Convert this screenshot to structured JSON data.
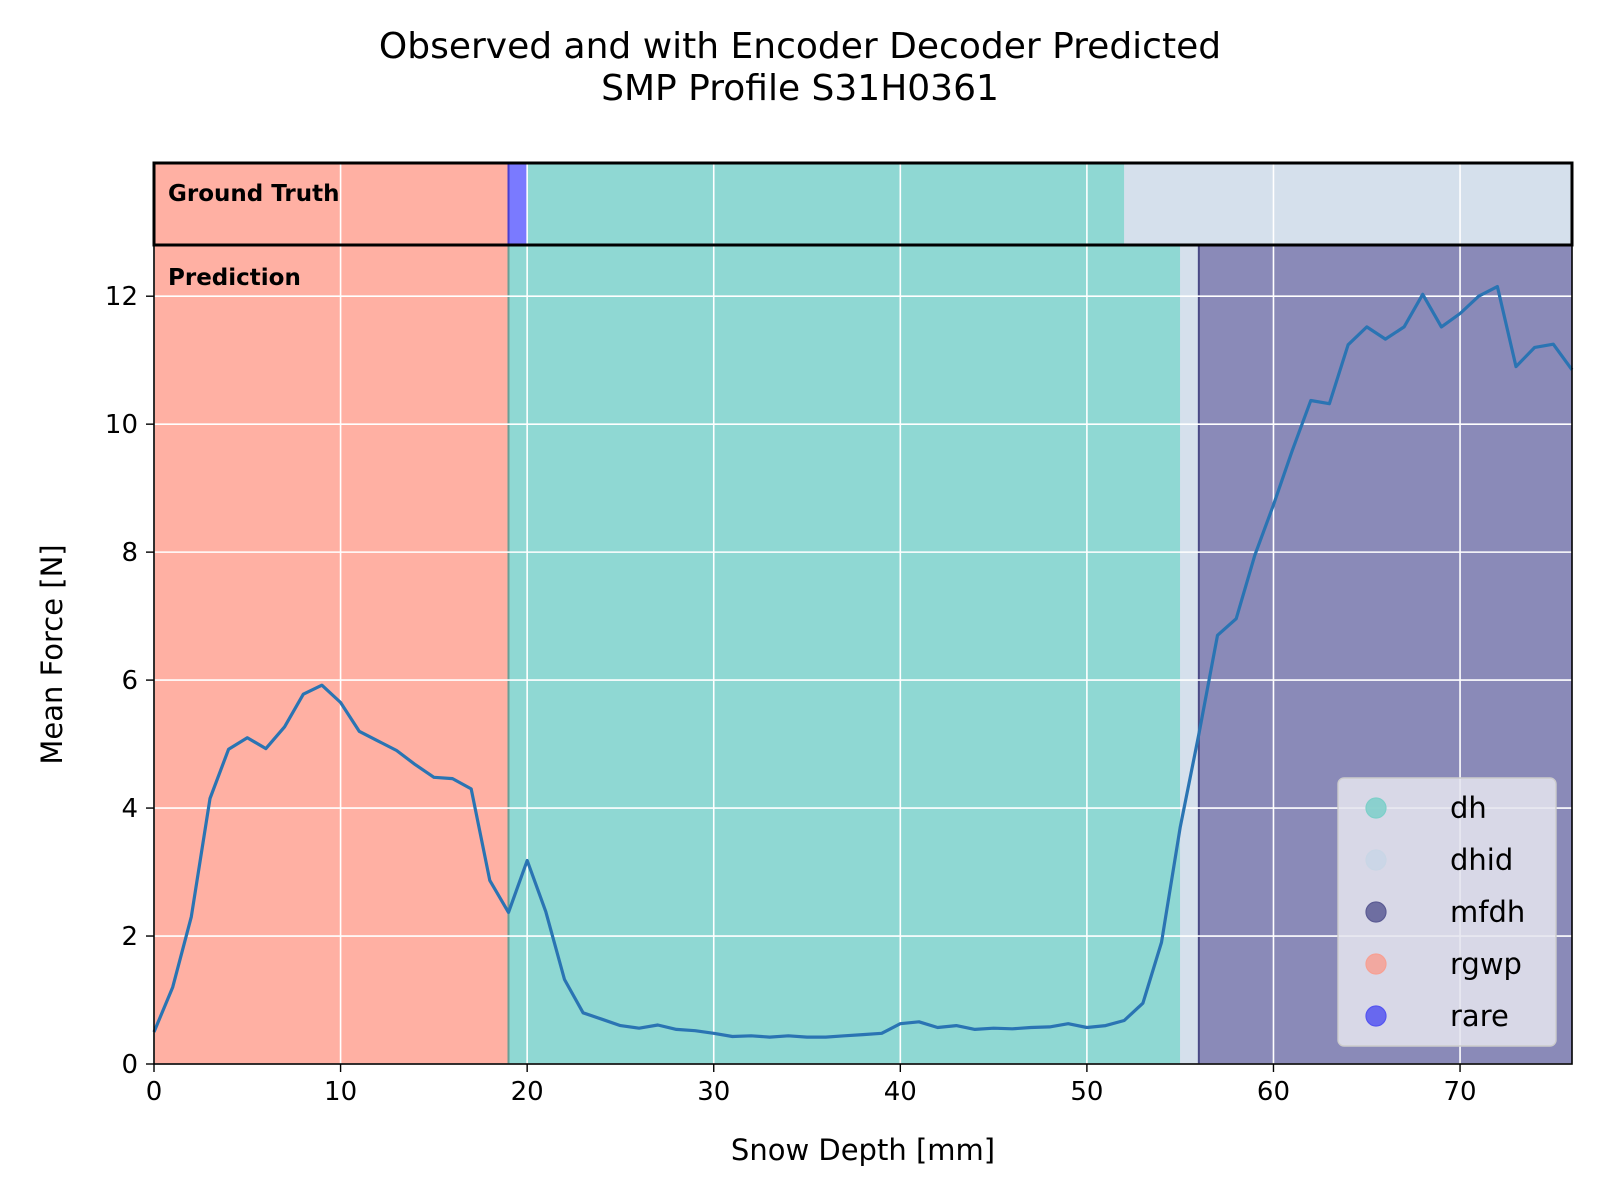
{
  "chart_data": {
    "type": "line",
    "title": [
      "Observed and with Encoder Decoder Predicted",
      "SMP Profile S31H0361"
    ],
    "xlabel": "Snow Depth [mm]",
    "ylabel": "Mean Force [N]",
    "xlim": [
      0,
      76
    ],
    "ylim": [
      0,
      12.8
    ],
    "xticks": [
      0,
      10,
      20,
      30,
      40,
      50,
      60,
      70
    ],
    "yticks": [
      0,
      2,
      4,
      6,
      8,
      10,
      12
    ],
    "grid": true,
    "background": "#e5e5ef",
    "legend_position": "lower-right",
    "series": [
      {
        "name": "",
        "color": "#2a74b3",
        "x": [
          0,
          1,
          2,
          3,
          4,
          5,
          6,
          7,
          8,
          9,
          10,
          11,
          12,
          13,
          14,
          15,
          16,
          17,
          18,
          19,
          20,
          21,
          22,
          23,
          24,
          25,
          26,
          27,
          28,
          29,
          30,
          31,
          32,
          33,
          34,
          35,
          36,
          37,
          38,
          39,
          40,
          41,
          42,
          43,
          44,
          45,
          46,
          47,
          48,
          49,
          50,
          51,
          52,
          53,
          54,
          55,
          56,
          57,
          58,
          59,
          60,
          61,
          62,
          63,
          64,
          65,
          66,
          67,
          68,
          69,
          70,
          71,
          72,
          73,
          74,
          75,
          76
        ],
        "y": [
          0.5,
          1.2,
          2.3,
          4.15,
          4.92,
          5.1,
          4.93,
          5.27,
          5.78,
          5.92,
          5.65,
          5.2,
          5.05,
          4.9,
          4.68,
          4.48,
          4.46,
          4.3,
          2.87,
          2.37,
          3.18,
          2.38,
          1.32,
          0.8,
          0.7,
          0.6,
          0.56,
          0.61,
          0.54,
          0.52,
          0.48,
          0.43,
          0.44,
          0.42,
          0.44,
          0.42,
          0.42,
          0.44,
          0.46,
          0.48,
          0.63,
          0.66,
          0.57,
          0.6,
          0.54,
          0.56,
          0.55,
          0.57,
          0.58,
          0.63,
          0.57,
          0.6,
          0.68,
          0.95,
          1.9,
          3.7,
          5.15,
          6.7,
          6.96,
          7.95,
          8.74,
          9.58,
          10.37,
          10.32,
          11.24,
          11.52,
          11.33,
          11.52,
          12.03,
          11.52,
          11.73,
          12.0,
          12.15,
          10.9,
          11.2,
          11.25,
          10.85
        ]
      }
    ],
    "ground_truth_bands": [
      {
        "label": "rgwp",
        "from": 0,
        "to": 19
      },
      {
        "label": "rare",
        "from": 19,
        "to": 20
      },
      {
        "label": "dh",
        "from": 20,
        "to": 52
      },
      {
        "label": "dhid",
        "from": 52,
        "to": 76
      }
    ],
    "prediction_bands": [
      {
        "label": "rgwp",
        "from": 0,
        "to": 19
      },
      {
        "label": "dh",
        "from": 19,
        "to": 55
      },
      {
        "label": "dhid",
        "from": 55,
        "to": 56
      },
      {
        "label": "mfdh",
        "from": 56,
        "to": 76
      }
    ],
    "panels": {
      "ground_truth": "Ground Truth",
      "prediction": "Prediction"
    },
    "legend": [
      {
        "label": "dh",
        "color": "#8fd8d3"
      },
      {
        "label": "dhid",
        "color": "#d5e0ec"
      },
      {
        "label": "mfdh",
        "color": "#8a8ab8"
      },
      {
        "label": "rgwp",
        "color": "#ffb0a3"
      },
      {
        "label": "rare",
        "color": "#7a7aff"
      }
    ],
    "legend_marker_colors": {
      "dh": "#7dcfc9",
      "dhid": "#c9d6e6",
      "mfdh": "#5c5c94",
      "rgwp": "#f7a093",
      "rare": "#5555f0"
    }
  }
}
